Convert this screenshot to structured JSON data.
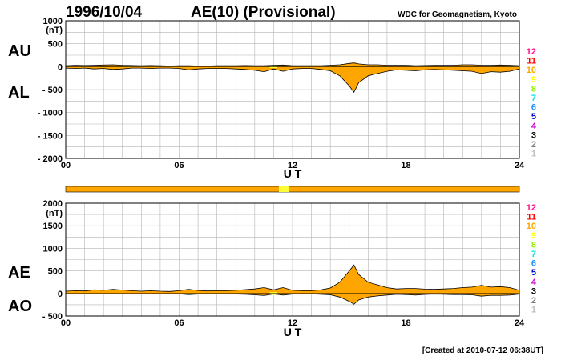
{
  "header": {
    "date": "1996/10/04",
    "title": "AE(10) (Provisional)",
    "source": "WDC for Geomagnetism, Kyoto",
    "created": "[Created at 2010-07-12 06:38UT]"
  },
  "level_scale": [
    {
      "label": "12",
      "color": "#ff1493"
    },
    {
      "label": "11",
      "color": "#ff0000"
    },
    {
      "label": "10",
      "color": "#ffa500"
    },
    {
      "label": "9",
      "color": "#ffff00"
    },
    {
      "label": "8",
      "color": "#90ee00"
    },
    {
      "label": "7",
      "color": "#00e5ee"
    },
    {
      "label": "6",
      "color": "#1e90ff"
    },
    {
      "label": "5",
      "color": "#0000cd"
    },
    {
      "label": "4",
      "color": "#cc00cc"
    },
    {
      "label": "3",
      "color": "#000000"
    },
    {
      "label": "2",
      "color": "#808080"
    },
    {
      "label": "1",
      "color": "#c0c0c0"
    }
  ],
  "colors": {
    "fill": "#ffa500",
    "fill_low": "#ffff33",
    "outline": "#000000",
    "grid": "#b4b4b4"
  },
  "chart_data": [
    {
      "type": "area",
      "upper_label": "AU",
      "lower_label": "AL",
      "ylabel_unit": "(nT)",
      "xlabel": "U T",
      "xlim": [
        0,
        24
      ],
      "ylim": [
        -2000,
        1000
      ],
      "ytick_labels": [
        "1000",
        "500",
        "0",
        "- 500",
        "- 1000",
        "- 1500",
        "- 2000"
      ],
      "xtick_labels": [
        "00",
        "06",
        "12",
        "18",
        "24"
      ],
      "x": [
        0,
        0.5,
        1,
        1.5,
        2,
        2.5,
        3,
        3.5,
        4,
        4.5,
        5,
        5.5,
        6,
        6.5,
        7,
        7.5,
        8,
        8.5,
        9,
        9.5,
        10,
        10.5,
        11,
        11.5,
        12,
        12.5,
        13,
        13.5,
        14,
        14.5,
        15,
        15.25,
        15.5,
        16,
        16.5,
        17,
        17.5,
        18,
        18.5,
        19,
        19.5,
        20,
        20.5,
        21,
        21.5,
        22,
        22.5,
        23,
        23.5,
        24
      ],
      "series": [
        {
          "values": [
            20,
            30,
            25,
            30,
            35,
            40,
            30,
            25,
            20,
            25,
            20,
            15,
            20,
            20,
            15,
            15,
            20,
            20,
            20,
            25,
            20,
            20,
            30,
            35,
            20,
            20,
            20,
            20,
            30,
            40,
            70,
            80,
            60,
            40,
            40,
            30,
            30,
            30,
            20,
            25,
            30,
            30,
            30,
            40,
            40,
            30,
            30,
            35,
            30,
            20
          ]
        },
        {
          "values": [
            -30,
            -40,
            -30,
            -50,
            -40,
            -60,
            -50,
            -30,
            -30,
            -40,
            -30,
            -30,
            -40,
            -70,
            -50,
            -40,
            -40,
            -40,
            -50,
            -60,
            -80,
            -110,
            -50,
            -100,
            -50,
            -40,
            -40,
            -60,
            -90,
            -200,
            -420,
            -560,
            -350,
            -200,
            -150,
            -100,
            -70,
            -80,
            -90,
            -70,
            -60,
            -70,
            -80,
            -90,
            -100,
            -150,
            -110,
            -120,
            -100,
            -50
          ]
        }
      ]
    },
    {
      "type": "area",
      "upper_label": "AE",
      "lower_label": "AO",
      "ylabel_unit": "(nT)",
      "xlabel": "U T",
      "xlim": [
        0,
        24
      ],
      "ylim": [
        -500,
        2000
      ],
      "ytick_labels": [
        "2000",
        "1500",
        "1000",
        "500",
        "0",
        "- 500"
      ],
      "xtick_labels": [
        "00",
        "06",
        "12",
        "18",
        "24"
      ],
      "x": [
        0,
        0.5,
        1,
        1.5,
        2,
        2.5,
        3,
        3.5,
        4,
        4.5,
        5,
        5.5,
        6,
        6.5,
        7,
        7.5,
        8,
        8.5,
        9,
        9.5,
        10,
        10.5,
        11,
        11.5,
        12,
        12.5,
        13,
        13.5,
        14,
        14.5,
        15,
        15.25,
        15.5,
        16,
        16.5,
        17,
        17.5,
        18,
        18.5,
        19,
        19.5,
        20,
        20.5,
        21,
        21.5,
        22,
        22.5,
        23,
        23.5,
        24
      ],
      "series": [
        {
          "values": [
            50,
            60,
            55,
            80,
            70,
            90,
            75,
            60,
            50,
            60,
            50,
            45,
            60,
            90,
            65,
            55,
            60,
            60,
            70,
            85,
            100,
            130,
            80,
            130,
            70,
            60,
            60,
            80,
            120,
            250,
            500,
            630,
            420,
            250,
            190,
            130,
            100,
            110,
            110,
            95,
            90,
            100,
            110,
            130,
            140,
            180,
            140,
            150,
            130,
            70
          ]
        },
        {
          "values": [
            -10,
            -5,
            -5,
            -10,
            -5,
            -10,
            -10,
            -5,
            -5,
            -8,
            -5,
            -8,
            -10,
            -25,
            -15,
            -12,
            -10,
            -10,
            -15,
            -18,
            -30,
            -45,
            -10,
            -35,
            -15,
            -10,
            -10,
            -20,
            -30,
            -80,
            -175,
            -240,
            -145,
            -80,
            -55,
            -35,
            -20,
            -25,
            -35,
            -22,
            -15,
            -20,
            -25,
            -25,
            -30,
            -60,
            -40,
            -42,
            -35,
            -15
          ]
        }
      ]
    }
  ]
}
